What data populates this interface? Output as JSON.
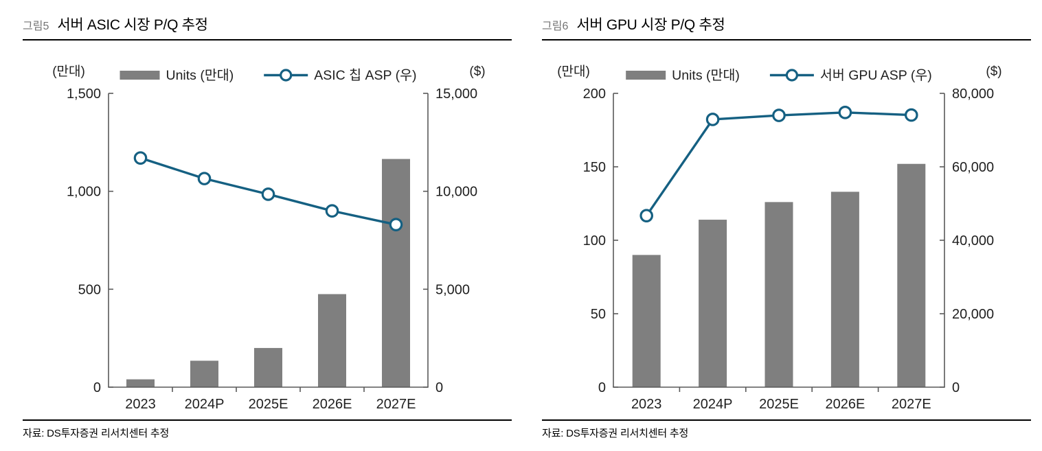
{
  "charts": [
    {
      "fig_label": "그림5",
      "title": "서버 ASIC 시장 P/Q 추정",
      "source": "자료: DS투자증권 리서치센터 추정"
    },
    {
      "fig_label": "그림6",
      "title": "서버 GPU 시장 P/Q 추정",
      "source": "자료: DS투자증권 리서치센터 추정"
    }
  ],
  "chart_data": [
    {
      "type": "bar",
      "subtype": "combo-bar-line-dual-axis",
      "title": "서버 ASIC 시장 P/Q 추정",
      "categories": [
        "2023",
        "2024P",
        "2025E",
        "2026E",
        "2027E"
      ],
      "left_axis": {
        "label": "(만대)",
        "range": [
          0,
          1500
        ],
        "ticks": [
          0,
          500,
          1000,
          1500
        ]
      },
      "right_axis": {
        "label": "($)",
        "range": [
          0,
          15000
        ],
        "ticks": [
          0,
          5000,
          10000,
          15000
        ]
      },
      "series": [
        {
          "name": "Units (만대)",
          "type": "bar",
          "axis": "left",
          "color": "#7f7f7f",
          "values": [
            40,
            135,
            200,
            475,
            1165
          ]
        },
        {
          "name": "ASIC 칩 ASP (우)",
          "type": "line",
          "axis": "right",
          "color": "#156082",
          "values": [
            11700,
            10650,
            9850,
            9000,
            8300
          ]
        }
      ],
      "legend_position": "top",
      "grid": false
    },
    {
      "type": "bar",
      "subtype": "combo-bar-line-dual-axis",
      "title": "서버 GPU 시장 P/Q 추정",
      "categories": [
        "2023",
        "2024P",
        "2025E",
        "2026E",
        "2027E"
      ],
      "left_axis": {
        "label": "(만대)",
        "range": [
          0,
          200
        ],
        "ticks": [
          0,
          50,
          100,
          150,
          200
        ]
      },
      "right_axis": {
        "label": "($)",
        "range": [
          0,
          80000
        ],
        "ticks": [
          0,
          20000,
          40000,
          60000,
          80000
        ]
      },
      "series": [
        {
          "name": "Units (만대)",
          "type": "bar",
          "axis": "left",
          "color": "#7f7f7f",
          "values": [
            90,
            114,
            126,
            133,
            152
          ]
        },
        {
          "name": "서버 GPU ASP (우)",
          "type": "line",
          "axis": "right",
          "color": "#156082",
          "values": [
            46700,
            72900,
            74000,
            74800,
            74100
          ]
        }
      ],
      "legend_position": "top",
      "grid": false
    }
  ]
}
